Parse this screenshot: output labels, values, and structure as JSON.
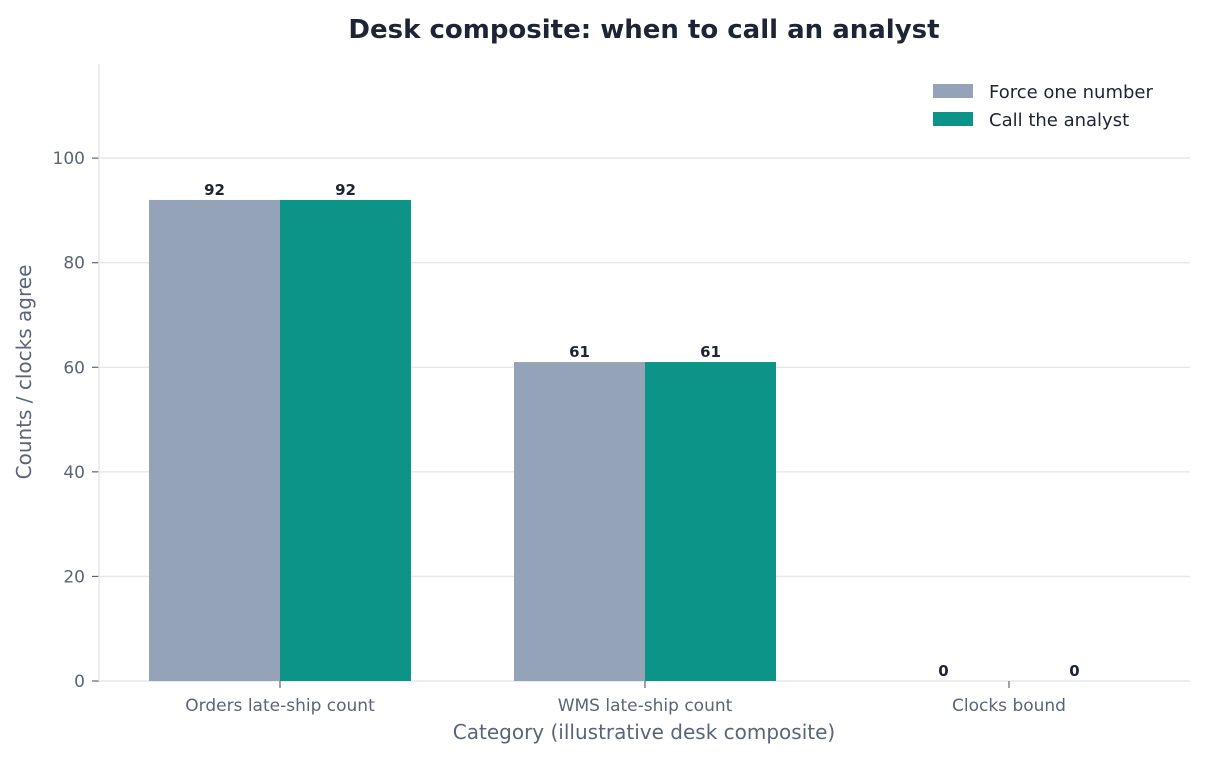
{
  "chart_data": {
    "type": "bar",
    "title": "Desk composite: when to call an analyst",
    "xlabel": "Category (illustrative desk composite)",
    "ylabel": "Counts / clocks agree",
    "categories": [
      "Orders late-ship count",
      "WMS late-ship count",
      "Clocks bound"
    ],
    "series": [
      {
        "name": "Force one number",
        "values": [
          92,
          61,
          0
        ],
        "color": "#94a3b8"
      },
      {
        "name": "Call the analyst",
        "values": [
          92,
          61,
          0
        ],
        "color": "#0d9488"
      }
    ],
    "ylim": [
      0,
      118
    ],
    "yticks": [
      0,
      20,
      40,
      60,
      80,
      100
    ],
    "grid": true,
    "legend_position": "top-right"
  }
}
